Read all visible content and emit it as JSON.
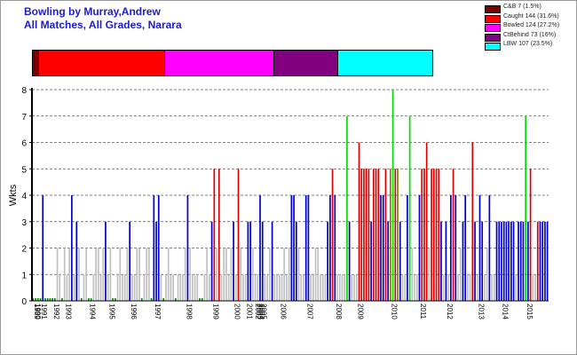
{
  "title_line1": "Bowling by Murray,Andrew",
  "title_line2": "All Matches, All Grades, Narara",
  "colors": {
    "cb": "#7a0000",
    "caught": "#ff0000",
    "bowled": "#ff00ff",
    "ctbehind": "#800080",
    "lbw": "#00ffff",
    "bar_blue": "#0000cc",
    "bar_red": "#dd0000",
    "bar_green": "#00dd00",
    "bar_grey": "#c0c0c0",
    "bar_olive": "#808000",
    "bar_dkgreen": "#008800"
  },
  "legend": [
    {
      "key": "cb",
      "label": "C&B 7 (1.5%)"
    },
    {
      "key": "caught",
      "label": "Caught 144 (31.6%)"
    },
    {
      "key": "bowled",
      "label": "Bowled 124 (27.2%)"
    },
    {
      "key": "ctbehind",
      "label": "CtBehind 73 (16%)"
    },
    {
      "key": "lbw",
      "label": "LBW 107 (23.5%)"
    }
  ],
  "chart_data": [
    {
      "type": "bar",
      "orientation": "horizontal-stacked",
      "segments": [
        {
          "name": "C&B",
          "value": 7,
          "percent": 1.5
        },
        {
          "name": "Caught",
          "value": 144,
          "percent": 31.6
        },
        {
          "name": "Bowled",
          "value": 124,
          "percent": 27.2
        },
        {
          "name": "CtBehind",
          "value": 73,
          "percent": 16
        },
        {
          "name": "LBW",
          "value": 107,
          "percent": 23.5
        }
      ]
    },
    {
      "type": "bar",
      "ylabel": "Wkts",
      "xlabel": "",
      "ylim": [
        0,
        8
      ],
      "yticks": [
        "0",
        "1",
        "2",
        "3",
        "4",
        "5",
        "6",
        "7",
        "8"
      ],
      "grid": "horizontal-dashed",
      "x_ticks": [
        {
          "label": "1989",
          "pos": 0.0
        },
        {
          "label": "1990",
          "pos": 0.4
        },
        {
          "label": "1991",
          "pos": 3
        },
        {
          "label": "1992",
          "pos": 8
        },
        {
          "label": "1993",
          "pos": 13
        },
        {
          "label": "1994",
          "pos": 23
        },
        {
          "label": "1995",
          "pos": 31
        },
        {
          "label": "1996",
          "pos": 40
        },
        {
          "label": "1997",
          "pos": 50
        },
        {
          "label": "1998",
          "pos": 63
        },
        {
          "label": "1999",
          "pos": 74
        },
        {
          "label": "2000",
          "pos": 83
        },
        {
          "label": "2001",
          "pos": 88
        },
        {
          "label": "2002",
          "pos": 91.5
        },
        {
          "label": "2003",
          "pos": 92.3
        },
        {
          "label": "2004",
          "pos": 93.1
        },
        {
          "label": "2005",
          "pos": 93.9
        },
        {
          "label": "2006",
          "pos": 102
        },
        {
          "label": "2007",
          "pos": 113
        },
        {
          "label": "2008",
          "pos": 125
        },
        {
          "label": "2009",
          "pos": 134
        },
        {
          "label": "2010",
          "pos": 148
        },
        {
          "label": "2011",
          "pos": 160
        },
        {
          "label": "2012",
          "pos": 171
        },
        {
          "label": "2013",
          "pos": 184
        },
        {
          "label": "2014",
          "pos": 194
        },
        {
          "label": "2015",
          "pos": 204
        }
      ],
      "x_count": 214,
      "values": [
        0.1,
        0.1,
        0.1,
        0.1,
        4,
        0.1,
        0.1,
        0.1,
        0.1,
        0.1,
        2,
        1,
        0.1,
        2,
        1,
        2,
        4,
        1,
        3,
        2,
        0.1,
        1,
        2,
        0.1,
        0.1,
        1,
        2,
        2,
        1,
        2,
        3,
        1,
        2,
        0.1,
        0.1,
        1,
        2,
        1,
        1,
        2,
        3,
        1,
        1,
        2,
        2,
        0.1,
        1,
        2,
        2,
        0.1,
        4,
        3,
        4,
        1,
        0.1,
        1,
        2,
        1,
        1,
        0.1,
        1,
        1,
        1,
        2,
        4,
        2,
        1,
        1,
        1,
        0.1,
        0.1,
        1,
        2,
        1,
        3,
        5,
        2,
        5,
        1,
        2,
        2,
        1,
        2,
        3,
        1,
        5,
        2,
        1,
        1,
        3,
        3,
        2,
        1,
        1,
        4,
        3,
        1,
        1,
        2,
        3,
        1,
        1,
        1,
        1,
        2,
        1,
        2,
        4,
        4,
        3,
        2,
        1,
        1,
        4,
        4,
        1,
        1,
        2,
        2,
        1,
        1,
        1,
        3,
        4,
        5,
        4,
        1,
        1,
        1,
        1,
        7,
        3,
        1,
        1,
        1,
        6,
        5,
        5,
        5,
        5,
        3,
        5,
        5,
        5,
        4,
        4,
        5,
        3,
        5,
        8,
        5,
        5,
        3,
        1,
        1,
        4,
        7,
        2,
        1,
        1,
        4,
        5,
        5,
        6,
        2,
        5,
        5,
        5,
        5,
        3,
        1,
        3,
        1,
        4,
        5,
        4,
        1,
        2,
        3,
        4,
        1,
        1,
        6,
        3,
        1,
        4,
        3,
        1,
        2,
        4,
        1,
        1,
        3,
        3,
        3,
        3,
        3,
        3,
        3,
        3,
        1,
        3,
        3,
        3,
        7,
        3,
        5,
        1,
        1,
        3,
        3,
        3,
        3,
        3
      ],
      "bar_colors": [
        "dkgreen",
        "dkgreen",
        "dkgreen",
        "dkgreen",
        "blue",
        "dkgreen",
        "dkgreen",
        "dkgreen",
        "dkgreen",
        "dkgreen",
        "grey",
        "grey",
        "dkgreen",
        "grey",
        "grey",
        "grey",
        "blue",
        "grey",
        "blue",
        "grey",
        "dkgreen",
        "grey",
        "grey",
        "dkgreen",
        "dkgreen",
        "grey",
        "grey",
        "grey",
        "grey",
        "grey",
        "blue",
        "grey",
        "grey",
        "dkgreen",
        "dkgreen",
        "grey",
        "grey",
        "grey",
        "grey",
        "grey",
        "blue",
        "grey",
        "grey",
        "grey",
        "grey",
        "dkgreen",
        "grey",
        "grey",
        "grey",
        "dkgreen",
        "blue",
        "blue",
        "blue",
        "grey",
        "dkgreen",
        "grey",
        "grey",
        "grey",
        "grey",
        "dkgreen",
        "grey",
        "grey",
        "grey",
        "grey",
        "blue",
        "grey",
        "grey",
        "grey",
        "grey",
        "dkgreen",
        "dkgreen",
        "grey",
        "grey",
        "grey",
        "blue",
        "red",
        "grey",
        "red",
        "grey",
        "grey",
        "grey",
        "grey",
        "grey",
        "blue",
        "grey",
        "red",
        "grey",
        "grey",
        "grey",
        "blue",
        "blue",
        "grey",
        "grey",
        "grey",
        "blue",
        "blue",
        "grey",
        "grey",
        "grey",
        "blue",
        "grey",
        "grey",
        "grey",
        "grey",
        "grey",
        "grey",
        "grey",
        "blue",
        "blue",
        "blue",
        "grey",
        "grey",
        "grey",
        "blue",
        "blue",
        "grey",
        "grey",
        "grey",
        "grey",
        "grey",
        "grey",
        "grey",
        "blue",
        "blue",
        "red",
        "blue",
        "grey",
        "grey",
        "grey",
        "grey",
        "green",
        "blue",
        "grey",
        "grey",
        "grey",
        "red",
        "red",
        "red",
        "red",
        "red",
        "blue",
        "red",
        "red",
        "red",
        "blue",
        "blue",
        "red",
        "blue",
        "olive",
        "green",
        "red",
        "olive",
        "blue",
        "grey",
        "grey",
        "blue",
        "green",
        "grey",
        "grey",
        "grey",
        "blue",
        "red",
        "red",
        "red",
        "grey",
        "red",
        "red",
        "red",
        "red",
        "blue",
        "grey",
        "blue",
        "grey",
        "blue",
        "red",
        "blue",
        "grey",
        "grey",
        "blue",
        "blue",
        "grey",
        "grey",
        "red",
        "blue",
        "grey",
        "blue",
        "blue",
        "grey",
        "grey",
        "blue",
        "grey",
        "grey",
        "blue",
        "blue",
        "blue",
        "blue",
        "blue",
        "blue",
        "blue",
        "blue",
        "grey",
        "blue",
        "blue",
        "blue",
        "green",
        "blue",
        "red",
        "grey",
        "grey",
        "red",
        "blue",
        "blue",
        "blue",
        "blue"
      ]
    }
  ]
}
